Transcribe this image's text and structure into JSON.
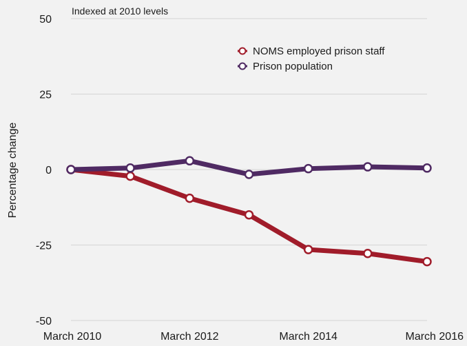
{
  "chart_data": {
    "type": "line",
    "subtitle": "Indexed at 2010 levels",
    "ylabel": "Percentage change",
    "xlabel": "",
    "ylim": [
      -50,
      50
    ],
    "yticks": [
      50,
      25,
      0,
      -25,
      -50
    ],
    "x": [
      "March 2010",
      "March 2011",
      "March 2012",
      "March 2013",
      "March 2014",
      "March 2015",
      "March 2016"
    ],
    "xtick_labels": [
      "March 2010",
      "March 2012",
      "March 2014",
      "March 2016"
    ],
    "grid": true,
    "legend_position": "top-right",
    "series": [
      {
        "name": "NOMS employed prison staff",
        "color": "#a01c2a",
        "values": [
          0,
          -2.2,
          -9.5,
          -15,
          -26.5,
          -27.8,
          -30.5
        ]
      },
      {
        "name": "Prison population",
        "color": "#4f2a63",
        "values": [
          0,
          0.5,
          2.9,
          -1.6,
          0.3,
          0.9,
          0.5
        ]
      }
    ]
  }
}
